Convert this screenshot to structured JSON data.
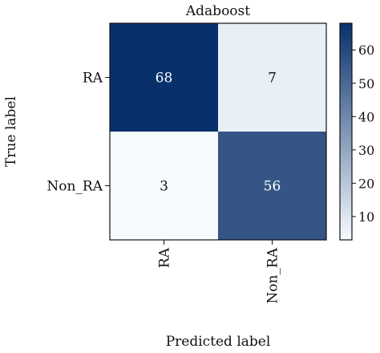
{
  "chart_data": {
    "type": "heatmap",
    "title": "Adaboost",
    "xlabel": "Predicted label",
    "ylabel": "True label",
    "x_categories": [
      "RA",
      "Non_RA"
    ],
    "y_categories": [
      "RA",
      "Non_RA"
    ],
    "values": [
      [
        68,
        7
      ],
      [
        3,
        56
      ]
    ],
    "cell_labels": [
      [
        "68",
        "7"
      ],
      [
        "3",
        "56"
      ]
    ],
    "colorbar": {
      "range": [
        3,
        68
      ],
      "ticks": [
        10,
        20,
        30,
        40,
        50,
        60
      ],
      "tick_labels": [
        "10",
        "20",
        "30",
        "40",
        "50",
        "60"
      ]
    },
    "colormap": {
      "name": "Blues",
      "low": "#f7fbff",
      "high": "#08306b"
    }
  }
}
